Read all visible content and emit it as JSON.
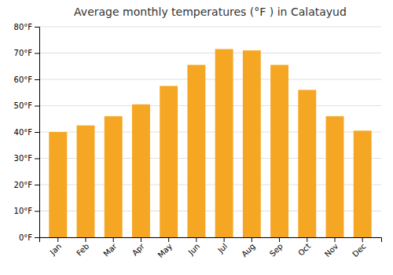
{
  "chart_data": {
    "type": "bar",
    "title": "Average monthly temperatures (°F ) in Calatayud",
    "categories": [
      "Jan",
      "Feb",
      "Mar",
      "Apr",
      "May",
      "Jun",
      "Jul",
      "Aug",
      "Sep",
      "Oct",
      "Nov",
      "Dec"
    ],
    "values": [
      40,
      42.5,
      46,
      50.5,
      57.5,
      65.5,
      71.5,
      71,
      65.5,
      56,
      46,
      40.5
    ],
    "color": "#F5A623",
    "ylim": [
      0,
      80
    ],
    "yticks": [
      {
        "value": 0,
        "label": "0°F"
      },
      {
        "value": 10,
        "label": "10°F"
      },
      {
        "value": 20,
        "label": "20°F"
      },
      {
        "value": 30,
        "label": "30°F"
      },
      {
        "value": 40,
        "label": "40°F"
      },
      {
        "value": 50,
        "label": "50°F"
      },
      {
        "value": 60,
        "label": "60°F"
      },
      {
        "value": 70,
        "label": "70°F"
      },
      {
        "value": 80,
        "label": "80°F"
      }
    ],
    "grid": true
  }
}
